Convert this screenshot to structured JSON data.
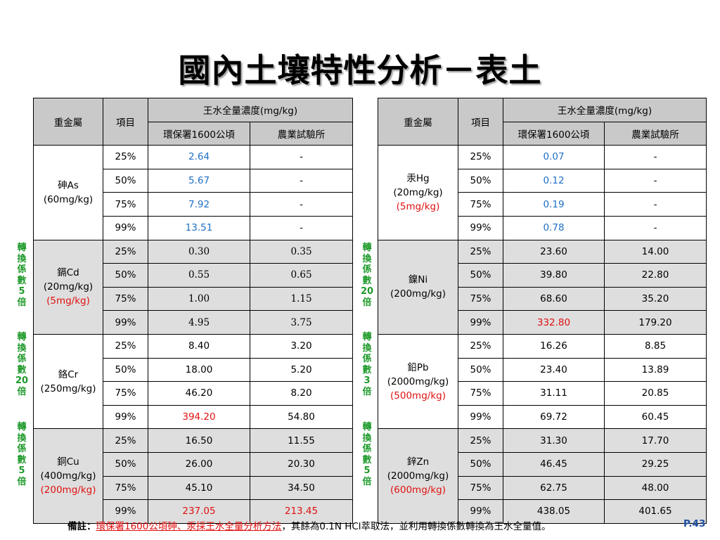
{
  "title": "國內土壤特性分析－表土",
  "headers": {
    "metal": "重金屬",
    "item": "項目",
    "aqua_regia": "王水全量濃度(mg/kg)",
    "epa": "環保署1600公頃",
    "agri": "農業試驗所"
  },
  "side_labels": [
    {
      "text": "轉\n換\n係\n數\n5\n倍"
    },
    {
      "text": "轉\n換\n係\n數\n20\n倍"
    },
    {
      "text": "轉\n換\n係\n數\n5\n倍"
    },
    {
      "text": "轉\n換\n係\n數\n20\n倍"
    },
    {
      "text": "轉\n換\n係\n數\n3\n倍"
    },
    {
      "text": "轉\n換\n係\n數\n5\n倍"
    }
  ],
  "left_table": [
    {
      "name": "砷As",
      "limit1": "(60mg/kg)",
      "limit2": "",
      "bg": "white",
      "rows": [
        {
          "p": "25%",
          "epa": "2.64",
          "agri": "-",
          "epa_color": "blue",
          "agri_color": ""
        },
        {
          "p": "50%",
          "epa": "5.67",
          "agri": "-",
          "epa_color": "blue",
          "agri_color": ""
        },
        {
          "p": "75%",
          "epa": "7.92",
          "agri": "-",
          "epa_color": "blue",
          "agri_color": ""
        },
        {
          "p": "99%",
          "epa": "13.51",
          "agri": "-",
          "epa_color": "blue",
          "agri_color": ""
        }
      ]
    },
    {
      "name": "鎘Cd",
      "limit1": "(20mg/kg)",
      "limit2": "(5mg/kg)",
      "bg": "grey",
      "rows": [
        {
          "p": "25%",
          "epa": "0.30",
          "agri": "0.35",
          "epa_color": "serif",
          "agri_color": "serif"
        },
        {
          "p": "50%",
          "epa": "0.55",
          "agri": "0.65",
          "epa_color": "serif",
          "agri_color": "serif"
        },
        {
          "p": "75%",
          "epa": "1.00",
          "agri": "1.15",
          "epa_color": "serif",
          "agri_color": "serif"
        },
        {
          "p": "99%",
          "epa": "4.95",
          "agri": "3.75",
          "epa_color": "serif",
          "agri_color": "serif"
        }
      ]
    },
    {
      "name": "鉻Cr",
      "limit1": "(250mg/kg)",
      "limit2": "",
      "bg": "white",
      "rows": [
        {
          "p": "25%",
          "epa": "8.40",
          "agri": "3.20",
          "epa_color": "",
          "agri_color": ""
        },
        {
          "p": "50%",
          "epa": "18.00",
          "agri": "5.20",
          "epa_color": "",
          "agri_color": ""
        },
        {
          "p": "75%",
          "epa": "46.20",
          "agri": "8.20",
          "epa_color": "",
          "agri_color": ""
        },
        {
          "p": "99%",
          "epa": "394.20",
          "agri": "54.80",
          "epa_color": "red",
          "agri_color": ""
        }
      ]
    },
    {
      "name": "銅Cu",
      "limit1": "(400mg/kg)",
      "limit2": "(200mg/kg)",
      "bg": "grey",
      "rows": [
        {
          "p": "25%",
          "epa": "16.50",
          "agri": "11.55",
          "epa_color": "",
          "agri_color": ""
        },
        {
          "p": "50%",
          "epa": "26.00",
          "agri": "20.30",
          "epa_color": "",
          "agri_color": ""
        },
        {
          "p": "75%",
          "epa": "45.10",
          "agri": "34.50",
          "epa_color": "",
          "agri_color": ""
        },
        {
          "p": "99%",
          "epa": "237.05",
          "agri": "213.45",
          "epa_color": "red",
          "agri_color": "red"
        }
      ]
    }
  ],
  "right_table": [
    {
      "name": "汞Hg",
      "limit1": "(20mg/kg)",
      "limit2": "(5mg/kg)",
      "bg": "white",
      "rows": [
        {
          "p": "25%",
          "epa": "0.07",
          "agri": "-",
          "epa_color": "blue",
          "agri_color": ""
        },
        {
          "p": "50%",
          "epa": "0.12",
          "agri": "-",
          "epa_color": "blue",
          "agri_color": ""
        },
        {
          "p": "75%",
          "epa": "0.19",
          "agri": "-",
          "epa_color": "blue",
          "agri_color": ""
        },
        {
          "p": "99%",
          "epa": "0.78",
          "agri": "-",
          "epa_color": "blue",
          "agri_color": ""
        }
      ]
    },
    {
      "name": "鎳Ni",
      "limit1": "(200mg/kg)",
      "limit2": "",
      "bg": "grey",
      "rows": [
        {
          "p": "25%",
          "epa": "23.60",
          "agri": "14.00",
          "epa_color": "",
          "agri_color": ""
        },
        {
          "p": "50%",
          "epa": "39.80",
          "agri": "22.80",
          "epa_color": "",
          "agri_color": ""
        },
        {
          "p": "75%",
          "epa": "68.60",
          "agri": "35.20",
          "epa_color": "",
          "agri_color": ""
        },
        {
          "p": "99%",
          "epa": "332.80",
          "agri": "179.20",
          "epa_color": "red",
          "agri_color": ""
        }
      ]
    },
    {
      "name": "鉛Pb",
      "limit1": "(2000mg/kg)",
      "limit2": "(500mg/kg)",
      "bg": "white",
      "rows": [
        {
          "p": "25%",
          "epa": "16.26",
          "agri": "8.85",
          "epa_color": "",
          "agri_color": ""
        },
        {
          "p": "50%",
          "epa": "23.40",
          "agri": "13.89",
          "epa_color": "",
          "agri_color": ""
        },
        {
          "p": "75%",
          "epa": "31.11",
          "agri": "20.85",
          "epa_color": "",
          "agri_color": ""
        },
        {
          "p": "99%",
          "epa": "69.72",
          "agri": "60.45",
          "epa_color": "",
          "agri_color": ""
        }
      ]
    },
    {
      "name": "鋅Zn",
      "limit1": "(2000mg/kg)",
      "limit2": "(600mg/kg)",
      "bg": "grey",
      "rows": [
        {
          "p": "25%",
          "epa": "31.30",
          "agri": "17.70",
          "epa_color": "",
          "agri_color": ""
        },
        {
          "p": "50%",
          "epa": "46.45",
          "agri": "29.25",
          "epa_color": "",
          "agri_color": ""
        },
        {
          "p": "75%",
          "epa": "62.75",
          "agri": "48.00",
          "epa_color": "",
          "agri_color": ""
        },
        {
          "p": "99%",
          "epa": "438.05",
          "agri": "401.65",
          "epa_color": "",
          "agri_color": ""
        }
      ]
    }
  ],
  "note": {
    "label": "備註：",
    "link": "環保署1600公頃砷、汞採王水全量分析方法",
    "rest": "，其餘為0.1N HCl萃取法，並利用轉換係數轉換為王水全量值。"
  },
  "page": "P.43"
}
